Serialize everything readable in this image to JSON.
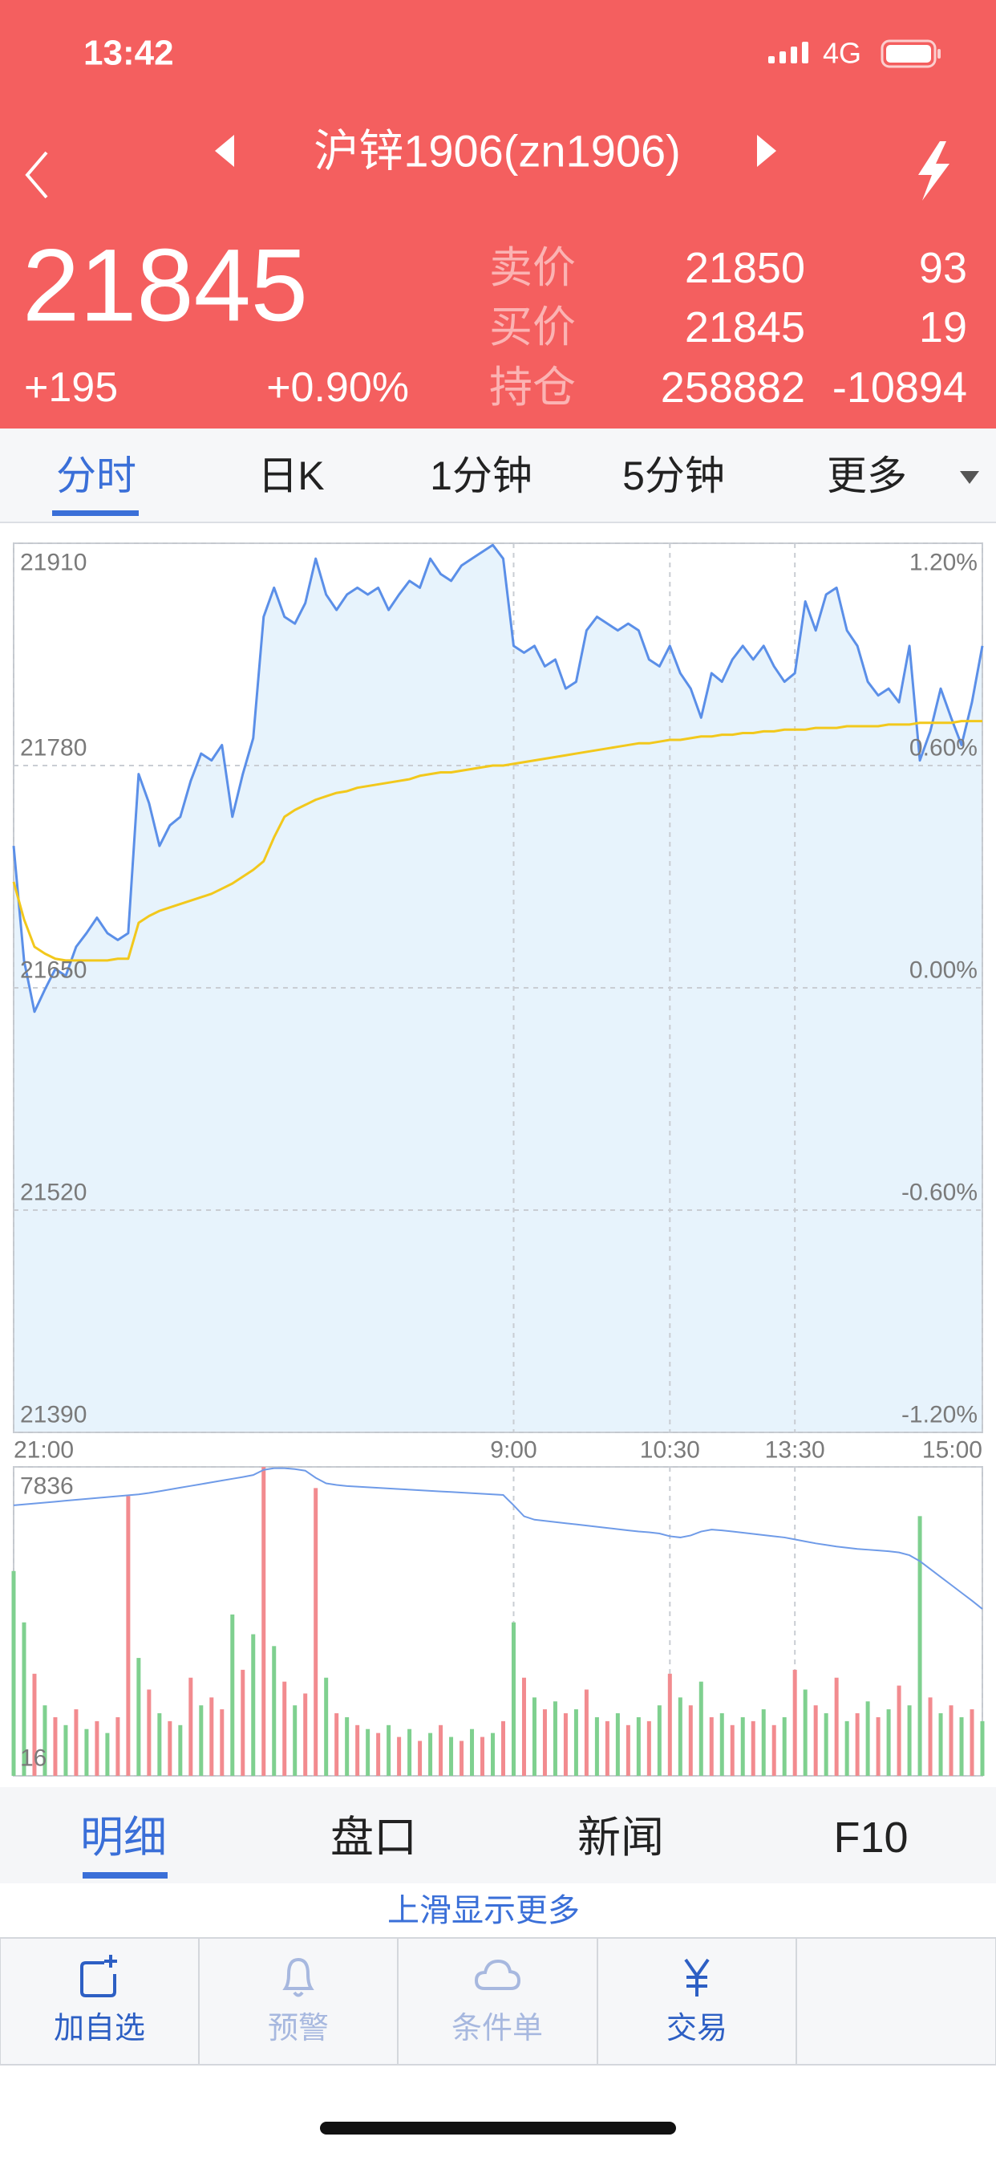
{
  "status_bar": {
    "time": "13:42",
    "network": "4G"
  },
  "header": {
    "title": "沪锌1906(zn1906)"
  },
  "quote": {
    "price": "21845",
    "change": "+195",
    "change_pct": "+0.90%",
    "rows": [
      {
        "label": "卖价",
        "price": "21850",
        "qty": "93"
      },
      {
        "label": "买价",
        "price": "21845",
        "qty": "19"
      },
      {
        "label": "持仓",
        "price": "258882",
        "qty": "-10894"
      }
    ]
  },
  "tabs": [
    "分时",
    "日K",
    "1分钟",
    "5分钟",
    "更多"
  ],
  "chart_data": [
    {
      "type": "line",
      "x": [
        0,
        5,
        10,
        15,
        20,
        25,
        30,
        35,
        40,
        45,
        50,
        55,
        60,
        65,
        70,
        75,
        80,
        85,
        90,
        95,
        100,
        105,
        110,
        115,
        120,
        125,
        130,
        135,
        140,
        145,
        150,
        155,
        160,
        165,
        170,
        175,
        180,
        185,
        190,
        195,
        200,
        205,
        210,
        215,
        220,
        225,
        230,
        235,
        240,
        245,
        250,
        255,
        260,
        265,
        270,
        275,
        280,
        285,
        290,
        295,
        300,
        305,
        310,
        315,
        320,
        325,
        330,
        335,
        340,
        345,
        350,
        355,
        360,
        365,
        370,
        375,
        380,
        385,
        390,
        395,
        400,
        405,
        410,
        415,
        420,
        425,
        430,
        435,
        440,
        445,
        450,
        455,
        460,
        465
      ],
      "series": [
        {
          "color": "#5b8fe8",
          "values": [
            21733,
            21666,
            21636,
            21649,
            21661,
            21657,
            21674,
            21682,
            21691,
            21682,
            21678,
            21682,
            21775,
            21758,
            21733,
            21745,
            21750,
            21771,
            21787,
            21783,
            21792,
            21750,
            21775,
            21796,
            21867,
            21884,
            21867,
            21863,
            21875,
            21901,
            21880,
            21871,
            21880,
            21884,
            21880,
            21884,
            21871,
            21880,
            21888,
            21884,
            21901,
            21892,
            21888,
            21897,
            21901,
            21905,
            21909,
            21901,
            21850,
            21846,
            21850,
            21838,
            21842,
            21825,
            21829,
            21859,
            21867,
            21863,
            21859,
            21863,
            21859,
            21842,
            21838,
            21850,
            21834,
            21825,
            21808,
            21834,
            21829,
            21842,
            21850,
            21842,
            21850,
            21838,
            21829,
            21834,
            21876,
            21859,
            21880,
            21884,
            21859,
            21850,
            21829,
            21821,
            21825,
            21817,
            21850,
            21783,
            21800,
            21825,
            21808,
            21792,
            21817,
            21850
          ]
        },
        {
          "color": "#f2c81c",
          "values": [
            21712,
            21690,
            21674,
            21670,
            21667,
            21666,
            21666,
            21666,
            21666,
            21666,
            21667,
            21667,
            21688,
            21692,
            21695,
            21697,
            21699,
            21701,
            21703,
            21705,
            21708,
            21711,
            21715,
            21719,
            21724,
            21738,
            21750,
            21754,
            21757,
            21760,
            21762,
            21764,
            21765,
            21767,
            21768,
            21769,
            21770,
            21771,
            21772,
            21774,
            21775,
            21776,
            21776,
            21777,
            21778,
            21779,
            21780,
            21780,
            21781,
            21782,
            21783,
            21784,
            21785,
            21786,
            21787,
            21788,
            21789,
            21790,
            21791,
            21792,
            21793,
            21793,
            21794,
            21795,
            21795,
            21796,
            21797,
            21797,
            21798,
            21798,
            21799,
            21799,
            21800,
            21800,
            21801,
            21801,
            21801,
            21802,
            21802,
            21802,
            21803,
            21803,
            21803,
            21803,
            21804,
            21804,
            21804,
            21805,
            21805,
            21805,
            21805,
            21806,
            21806,
            21806
          ]
        }
      ],
      "area_color": "#e7f3fc",
      "xlim": [
        0,
        465
      ],
      "xticks": [
        {
          "value": 0,
          "label": "21:00"
        },
        {
          "value": 240,
          "label": "9:00"
        },
        {
          "value": 315,
          "label": "10:30"
        },
        {
          "value": 375,
          "label": "13:30"
        },
        {
          "value": 465,
          "label": "15:00"
        }
      ],
      "ylim": [
        21390,
        21910
      ],
      "yticks": [
        21390,
        21520,
        21650,
        21780,
        21910
      ],
      "y2lim": [
        -1.2,
        1.2
      ],
      "y2ticks": [
        {
          "value": -1.2,
          "label": "-1.20%"
        },
        {
          "value": -0.6,
          "label": "-0.60%"
        },
        {
          "value": 0,
          "label": "0.00%"
        },
        {
          "value": 0.6,
          "label": "0.60%"
        },
        {
          "value": 1.2,
          "label": "1.20%"
        }
      ],
      "grid": true
    },
    {
      "type": "bar",
      "x": [
        0,
        5,
        10,
        15,
        20,
        25,
        30,
        35,
        40,
        45,
        50,
        55,
        60,
        65,
        70,
        75,
        80,
        85,
        90,
        95,
        100,
        105,
        110,
        115,
        120,
        125,
        130,
        135,
        140,
        145,
        150,
        155,
        160,
        165,
        170,
        175,
        180,
        185,
        190,
        195,
        200,
        205,
        210,
        215,
        220,
        225,
        230,
        235,
        240,
        245,
        250,
        255,
        260,
        265,
        270,
        275,
        280,
        285,
        290,
        295,
        300,
        305,
        310,
        315,
        320,
        325,
        330,
        335,
        340,
        345,
        350,
        355,
        360,
        365,
        370,
        375,
        380,
        385,
        390,
        395,
        400,
        405,
        410,
        415,
        420,
        425,
        430,
        435,
        440,
        445,
        450,
        455,
        460,
        465
      ],
      "values": [
        5200,
        3900,
        2600,
        1800,
        1500,
        1300,
        1700,
        1200,
        1400,
        1100,
        1500,
        7100,
        3000,
        2200,
        1600,
        1400,
        1300,
        2500,
        1800,
        2000,
        1700,
        4100,
        2700,
        3600,
        7836,
        3300,
        2400,
        1800,
        2100,
        7300,
        2500,
        1600,
        1500,
        1300,
        1200,
        1100,
        1300,
        1000,
        1200,
        900,
        1100,
        1300,
        1000,
        900,
        1200,
        1000,
        1100,
        1400,
        3900,
        2500,
        2000,
        1700,
        1900,
        1600,
        1700,
        2200,
        1500,
        1400,
        1600,
        1300,
        1500,
        1400,
        1800,
        2600,
        2000,
        1800,
        2400,
        1500,
        1600,
        1300,
        1500,
        1400,
        1700,
        1300,
        1500,
        2700,
        2200,
        1800,
        1600,
        2500,
        1400,
        1600,
        1900,
        1500,
        1700,
        2300,
        1800,
        6590,
        2000,
        1600,
        1800,
        1500,
        1700,
        1400
      ],
      "colors": [
        "#7fd08f",
        "#7fd08f",
        "#f28b8f",
        "#7fd08f",
        "#f28b8f",
        "#7fd08f",
        "#f28b8f",
        "#7fd08f",
        "#f28b8f",
        "#7fd08f",
        "#f28b8f",
        "#f28b8f",
        "#7fd08f",
        "#f28b8f",
        "#7fd08f",
        "#f28b8f",
        "#7fd08f",
        "#f28b8f",
        "#7fd08f",
        "#f28b8f",
        "#f28b8f",
        "#7fd08f",
        "#f28b8f",
        "#7fd08f",
        "#f28b8f",
        "#7fd08f",
        "#f28b8f",
        "#7fd08f",
        "#f28b8f",
        "#f28b8f",
        "#7fd08f",
        "#f28b8f",
        "#7fd08f",
        "#f28b8f",
        "#7fd08f",
        "#f28b8f",
        "#7fd08f",
        "#f28b8f",
        "#7fd08f",
        "#f28b8f",
        "#7fd08f",
        "#f28b8f",
        "#7fd08f",
        "#f28b8f",
        "#7fd08f",
        "#f28b8f",
        "#7fd08f",
        "#f28b8f",
        "#7fd08f",
        "#f28b8f",
        "#7fd08f",
        "#f28b8f",
        "#7fd08f",
        "#f28b8f",
        "#7fd08f",
        "#f28b8f",
        "#7fd08f",
        "#f28b8f",
        "#7fd08f",
        "#f28b8f",
        "#7fd08f",
        "#f28b8f",
        "#7fd08f",
        "#f28b8f",
        "#7fd08f",
        "#f28b8f",
        "#7fd08f",
        "#f28b8f",
        "#7fd08f",
        "#f28b8f",
        "#7fd08f",
        "#f28b8f",
        "#7fd08f",
        "#f28b8f",
        "#7fd08f",
        "#f28b8f",
        "#7fd08f",
        "#f28b8f",
        "#7fd08f",
        "#f28b8f",
        "#7fd08f",
        "#f28b8f",
        "#7fd08f",
        "#f28b8f",
        "#7fd08f",
        "#f28b8f",
        "#7fd08f",
        "#7fd08f",
        "#f28b8f",
        "#7fd08f",
        "#f28b8f",
        "#7fd08f",
        "#f28b8f",
        "#7fd08f"
      ],
      "series": [
        {
          "color": "#6f9be8",
          "values": [
            6864,
            6887,
            6910,
            6933,
            6956,
            6980,
            7003,
            7026,
            7049,
            7072,
            7095,
            7118,
            7141,
            7176,
            7220,
            7265,
            7310,
            7355,
            7400,
            7445,
            7490,
            7535,
            7580,
            7630,
            7760,
            7802,
            7802,
            7780,
            7740,
            7560,
            7420,
            7380,
            7350,
            7335,
            7320,
            7305,
            7290,
            7275,
            7260,
            7245,
            7230,
            7215,
            7200,
            7185,
            7170,
            7155,
            7140,
            7125,
            6864,
            6586,
            6500,
            6470,
            6440,
            6410,
            6380,
            6350,
            6320,
            6290,
            6260,
            6230,
            6200,
            6180,
            6150,
            6080,
            6050,
            6100,
            6200,
            6250,
            6230,
            6200,
            6170,
            6140,
            6110,
            6080,
            6050,
            6000,
            5950,
            5900,
            5860,
            5820,
            5790,
            5760,
            5740,
            5720,
            5700,
            5670,
            5600,
            5450,
            5250,
            5050,
            4850,
            4650,
            4450,
            4240
          ]
        }
      ],
      "xlim": [
        0,
        465
      ],
      "xticks": [
        0,
        240,
        315,
        375,
        465
      ],
      "ylim": [
        16,
        7836
      ],
      "yticks": [
        16,
        7836
      ],
      "grid": true
    }
  ],
  "bottom_tabs": [
    "明细",
    "盘口",
    "新闻",
    "F10"
  ],
  "more_hint": "上滑显示更多",
  "toolbar": [
    "加自选",
    "预警",
    "条件单",
    "交易"
  ]
}
